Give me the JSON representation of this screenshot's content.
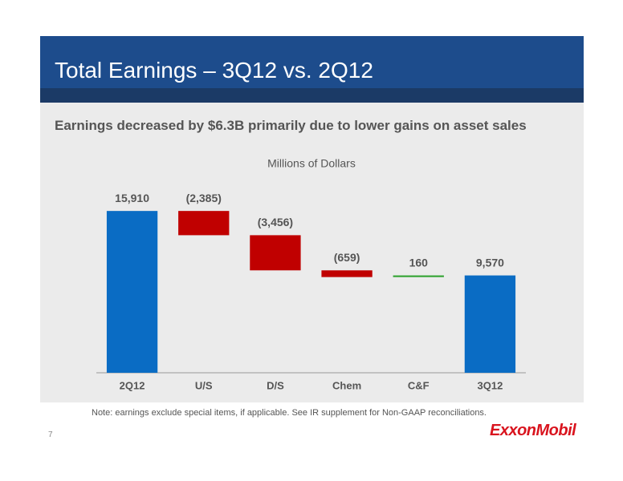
{
  "slide": {
    "title": "Total Earnings – 3Q12 vs. 2Q12",
    "headline": "Earnings decreased by $6.3B primarily due to lower gains on asset sales",
    "note": "Note: earnings exclude special items, if applicable. See IR supplement for Non-GAAP reconciliations.",
    "page_number": "7",
    "logo": "ExxonMobil"
  },
  "chart_data": {
    "type": "waterfall",
    "subtitle": "Millions of Dollars",
    "categories": [
      "2Q12",
      "U/S",
      "D/S",
      "Chem",
      "C&F",
      "3Q12"
    ],
    "values": [
      15910,
      -2385,
      -3456,
      -659,
      160,
      9570
    ],
    "value_labels": [
      "15,910",
      "(2,385)",
      "(3,456)",
      "(659)",
      "160",
      "9,570"
    ],
    "colors": [
      "#0a6cc4",
      "#c00000",
      "#c00000",
      "#c00000",
      "#2ca02c",
      "#0a6cc4"
    ],
    "ylim": [
      0,
      16000
    ]
  }
}
